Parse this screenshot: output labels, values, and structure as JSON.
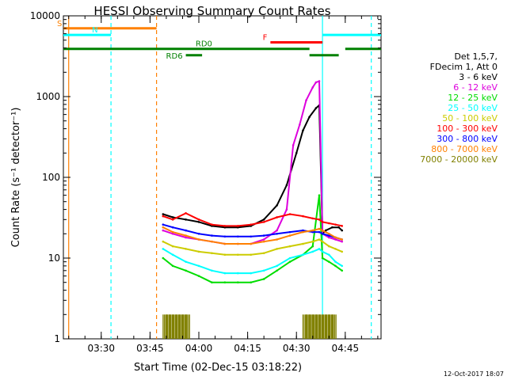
{
  "chart_data": {
    "type": "line",
    "title": "HESSI Observing Summary Count Rates",
    "xlabel": "Start Time (02-Dec-15 03:18:22)",
    "ylabel": "Count Rate (s⁻¹ detector⁻¹)",
    "y_scale": "log",
    "ylim": [
      1,
      10000
    ],
    "xlim": [
      "03:18:22",
      "04:56:00"
    ],
    "x_ticks": [
      "03:30",
      "03:45",
      "04:00",
      "04:15",
      "04:30",
      "04:45"
    ],
    "y_ticks": [
      "1",
      "10",
      "100",
      "1000",
      "10000"
    ],
    "timestamp": "12-Oct-2017 18:07",
    "legend": {
      "placement": "right",
      "header": [
        "Det 1,5,7,",
        "FDecim 1, Att 0"
      ],
      "entries": [
        {
          "label": "3 - 6 keV",
          "color": "#000000"
        },
        {
          "label": "6 - 12 keV",
          "color": "#dd00dd"
        },
        {
          "label": "12 - 25 keV",
          "color": "#00dd00"
        },
        {
          "label": "25 - 50 keV",
          "color": "#00ffff"
        },
        {
          "label": "50 - 100 keV",
          "color": "#cccc00"
        },
        {
          "label": "100 - 300 keV",
          "color": "#ff0000"
        },
        {
          "label": "300 - 800 keV",
          "color": "#0000ff"
        },
        {
          "label": "800 - 7000 keV",
          "color": "#ff8000"
        },
        {
          "label": "7000 - 20000 keV",
          "color": "#808000"
        }
      ]
    },
    "series": [
      {
        "name": "3 - 6 keV",
        "color": "#000000",
        "x": [
          "03:49",
          "03:52",
          "03:56",
          "04:00",
          "04:04",
          "04:08",
          "04:12",
          "04:16",
          "04:20",
          "04:24",
          "04:27",
          "04:30",
          "04:32",
          "04:34",
          "04:36",
          "04:37",
          "04:38",
          "04:39",
          "04:41",
          "04:43",
          "04:44"
        ],
        "y": [
          35,
          32,
          30,
          28,
          25,
          24,
          24,
          25,
          30,
          45,
          80,
          200,
          380,
          560,
          720,
          780,
          20,
          22,
          24,
          24,
          22
        ]
      },
      {
        "name": "6 - 12 keV",
        "color": "#dd00dd",
        "x": [
          "03:49",
          "03:52",
          "03:56",
          "04:00",
          "04:04",
          "04:08",
          "04:12",
          "04:16",
          "04:20",
          "04:24",
          "04:27",
          "04:29",
          "04:31",
          "04:33",
          "04:35",
          "04:36",
          "04:37",
          "04:38",
          "04:40",
          "04:42",
          "04:44"
        ],
        "y": [
          22,
          20,
          18,
          17,
          16,
          15,
          15,
          15,
          17,
          22,
          40,
          250,
          450,
          900,
          1300,
          1500,
          1550,
          20,
          18,
          17,
          16
        ]
      },
      {
        "name": "12 - 25 keV",
        "color": "#00dd00",
        "x": [
          "03:49",
          "03:52",
          "03:56",
          "04:00",
          "04:04",
          "04:08",
          "04:12",
          "04:16",
          "04:20",
          "04:24",
          "04:28",
          "04:32",
          "04:35",
          "04:37",
          "04:38",
          "04:40",
          "04:42",
          "04:44"
        ],
        "y": [
          10,
          8,
          7,
          6,
          5,
          5,
          5,
          5,
          5.5,
          7,
          9,
          11,
          14,
          60,
          10,
          9,
          8,
          7
        ]
      },
      {
        "name": "25 - 50 keV",
        "color": "#00ffff",
        "x": [
          "03:49",
          "03:52",
          "03:56",
          "04:00",
          "04:04",
          "04:08",
          "04:12",
          "04:16",
          "04:20",
          "04:24",
          "04:28",
          "04:32",
          "04:35",
          "04:37",
          "04:38",
          "04:40",
          "04:42",
          "04:44"
        ],
        "y": [
          13,
          11,
          9,
          8,
          7,
          6.5,
          6.5,
          6.5,
          7,
          8,
          10,
          11,
          12,
          13,
          12,
          11,
          9,
          8
        ]
      },
      {
        "name": "50 - 100 keV",
        "color": "#cccc00",
        "x": [
          "03:49",
          "03:52",
          "03:56",
          "04:00",
          "04:04",
          "04:08",
          "04:12",
          "04:16",
          "04:20",
          "04:24",
          "04:28",
          "04:32",
          "04:35",
          "04:37",
          "04:38",
          "04:40",
          "04:42",
          "04:44"
        ],
        "y": [
          16,
          14,
          13,
          12,
          11.5,
          11,
          11,
          11,
          11.5,
          13,
          14,
          15,
          16,
          17,
          16,
          14,
          13,
          12
        ]
      },
      {
        "name": "100 - 300 keV",
        "color": "#ff0000",
        "x": [
          "03:49",
          "03:52",
          "03:56",
          "04:00",
          "04:04",
          "04:08",
          "04:12",
          "04:16",
          "04:20",
          "04:24",
          "04:28",
          "04:32",
          "04:35",
          "04:37",
          "04:38",
          "04:40",
          "04:42",
          "04:44"
        ],
        "y": [
          33,
          30,
          36,
          30,
          26,
          25,
          25,
          26,
          28,
          32,
          35,
          33,
          31,
          30,
          28,
          27,
          26,
          25
        ]
      },
      {
        "name": "300 - 800 keV",
        "color": "#0000ff",
        "x": [
          "03:49",
          "03:52",
          "03:56",
          "04:00",
          "04:04",
          "04:08",
          "04:12",
          "04:16",
          "04:20",
          "04:24",
          "04:28",
          "04:32",
          "04:35",
          "04:37",
          "04:38",
          "04:40",
          "04:42",
          "04:44"
        ],
        "y": [
          26,
          24,
          22,
          20,
          19,
          18.5,
          18.5,
          18.5,
          19,
          20,
          21,
          22,
          21,
          21,
          20,
          19,
          18,
          17
        ]
      },
      {
        "name": "800 - 7000 keV",
        "color": "#ff8000",
        "x": [
          "03:49",
          "03:52",
          "03:56",
          "04:00",
          "04:04",
          "04:08",
          "04:12",
          "04:16",
          "04:20",
          "04:24",
          "04:28",
          "04:32",
          "04:35",
          "04:37",
          "04:38",
          "04:40",
          "04:42",
          "04:44"
        ],
        "y": [
          24,
          21,
          19,
          17,
          16,
          15,
          15,
          15,
          16,
          17,
          19,
          21,
          22,
          23,
          22,
          20,
          18,
          17
        ]
      },
      {
        "name": "7000 - 20000 keV",
        "color": "#808000",
        "type": "impulses",
        "x": [
          "03:49",
          "03:50",
          "03:51",
          "03:52",
          "03:53",
          "03:54",
          "03:55",
          "03:56",
          "04:32",
          "04:33",
          "04:34",
          "04:35",
          "04:36",
          "04:37",
          "04:38",
          "04:39",
          "04:40",
          "04:41"
        ],
        "y": [
          2,
          2,
          2,
          2,
          2,
          2,
          2,
          2,
          2,
          2,
          2,
          2,
          2,
          2,
          2,
          2,
          2,
          2
        ]
      }
    ],
    "bars": [
      {
        "label": "S",
        "color": "#ff8000",
        "x0": "03:18:22",
        "x1": "03:47:00",
        "y": 7000
      },
      {
        "label": "N",
        "color": "#00ffff",
        "x0": "03:18:22",
        "x1": "03:33:00",
        "y": 5800
      },
      {
        "label": "",
        "color": "#00ffff",
        "x0": "04:38:00",
        "x1": "04:56:00",
        "y": 5800
      },
      {
        "label": "F",
        "color": "#ff0000",
        "x0": "04:22:00",
        "x1": "04:38:00",
        "y": 4700
      },
      {
        "label": "RD0",
        "color": "#008000",
        "x0": "03:18:22",
        "x1": "04:34:00",
        "y": 3900
      },
      {
        "label": "",
        "color": "#008000",
        "x0": "04:45:00",
        "x1": "04:56:00",
        "y": 3900
      },
      {
        "label": "RD6",
        "color": "#008000",
        "x0": "03:56:00",
        "x1": "04:01:00",
        "y": 3250
      },
      {
        "label": "",
        "color": "#008000",
        "x0": "04:34:00",
        "x1": "04:43:00",
        "y": 3250
      }
    ],
    "vlines": [
      {
        "x": "03:20:00",
        "color": "#ff8000",
        "style": "solid"
      },
      {
        "x": "03:33:00",
        "color": "#00ffff",
        "style": "dashed"
      },
      {
        "x": "03:47:00",
        "color": "#ff8000",
        "style": "dashed"
      },
      {
        "x": "04:38:00",
        "color": "#00ffff",
        "style": "solid"
      },
      {
        "x": "04:53:00",
        "color": "#00ffff",
        "style": "dashed"
      }
    ]
  }
}
